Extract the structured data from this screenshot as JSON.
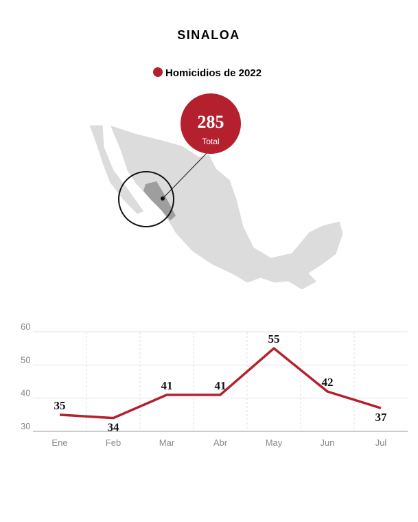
{
  "header": {
    "title": "SINALOA",
    "legend": "Homicidios de 2022",
    "total": "285",
    "total_label": "Total"
  },
  "chart_data": {
    "type": "line",
    "categories": [
      "Ene",
      "Feb",
      "Mar",
      "Abr",
      "May",
      "Jun",
      "Jul"
    ],
    "series": [
      {
        "name": "Homicidios de 2022",
        "color": "#b5202e",
        "values": [
          35,
          34,
          41,
          41,
          55,
          42,
          37
        ]
      }
    ],
    "ylim": [
      30,
      60
    ],
    "yticks": [
      30,
      40,
      50,
      60
    ],
    "grid": true
  }
}
